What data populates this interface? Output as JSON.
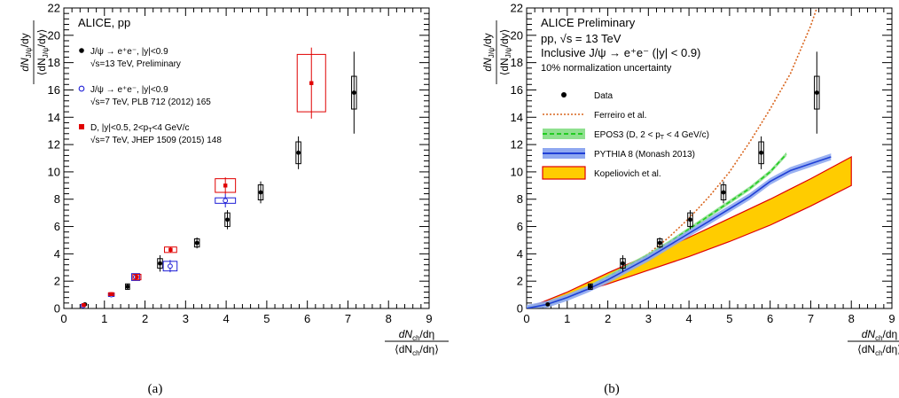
{
  "panels": [
    {
      "caption": "(a)",
      "header": "ALICE, pp",
      "header_lines": [],
      "legend": [
        {
          "marker": "dot-black",
          "line1": "J/ψ → e⁺e⁻, |y|<0.9",
          "line2": "√s=13 TeV, Preliminary"
        },
        {
          "marker": "circle-blue",
          "line1": "J/ψ → e⁺e⁻, |y|<0.9",
          "line2": "√s=7 TeV, PLB 712 (2012) 165"
        },
        {
          "marker": "square-red",
          "line1": "D, |y|<0.5, 2<p",
          "line1_sub": "T",
          "line1_tail": "<4 GeV/c",
          "line2": "√s=7 TeV, JHEP 1509 (2015) 148"
        }
      ]
    },
    {
      "caption": "(b)",
      "header": "ALICE Preliminary",
      "header_lines": [
        "pp, √s = 13 TeV",
        "Inclusive J/ψ → e⁺e⁻ (|y| < 0.9)",
        "10% normalization uncertainty"
      ],
      "legend": [
        {
          "marker": "dot-black",
          "line1": "Data"
        },
        {
          "marker": "dash-orange",
          "line1": "Ferreiro et al."
        },
        {
          "marker": "band-green",
          "line1": "EPOS3 (D, 2 < p",
          "line1_sub": "T",
          "line1_tail": " < 4 GeV/c)"
        },
        {
          "marker": "band-blue",
          "line1": "PYTHIA 8 (Monash 2013)"
        },
        {
          "marker": "band-orange",
          "line1": "Kopeliovich et al."
        }
      ]
    }
  ],
  "axis_text": {
    "y_num": "dN",
    "y_sub": "J/ψ",
    "y_tail": "/dy",
    "y_den_open": "⟨dN",
    "y_den_close": "/dy⟩",
    "x_num": "dN",
    "x_sub": "ch",
    "x_tail": "/dη",
    "x_den_open": "⟨dN",
    "x_den_close": "/dη⟩"
  },
  "chart_data": [
    {
      "type": "scatter",
      "title": "ALICE, pp",
      "xlim": [
        0,
        9
      ],
      "ylim": [
        0,
        22
      ],
      "xticks": [
        0,
        1,
        2,
        3,
        4,
        5,
        6,
        7,
        8,
        9
      ],
      "yticks": [
        0,
        2,
        4,
        6,
        8,
        10,
        12,
        14,
        16,
        18,
        20,
        22
      ],
      "grid": false,
      "series": [
        {
          "name": "J/ψ → e⁺e⁻, |y|<0.9, √s=13 TeV, Preliminary",
          "color": "#000000",
          "marker": "dot",
          "points": [
            {
              "x": 0.52,
              "y": 0.3,
              "err": 0.06,
              "sx": 0.04,
              "sy": 0.05
            },
            {
              "x": 1.57,
              "y": 1.6,
              "err": 0.2,
              "sx": 0.05,
              "sy": 0.2
            },
            {
              "x": 2.37,
              "y": 3.3,
              "err": 0.6,
              "sx": 0.06,
              "sy": 0.35
            },
            {
              "x": 3.28,
              "y": 4.8,
              "err": 0.4,
              "sx": 0.06,
              "sy": 0.3
            },
            {
              "x": 4.03,
              "y": 6.5,
              "err": 0.7,
              "sx": 0.06,
              "sy": 0.5
            },
            {
              "x": 4.85,
              "y": 8.5,
              "err": 0.8,
              "sx": 0.06,
              "sy": 0.55
            },
            {
              "x": 5.78,
              "y": 11.4,
              "err": 1.2,
              "sx": 0.06,
              "sy": 0.8
            },
            {
              "x": 7.15,
              "y": 15.8,
              "err": 3.0,
              "sx": 0.06,
              "sy": 1.2
            }
          ]
        },
        {
          "name": "J/ψ → e⁺e⁻, |y|<0.9, √s=7 TeV, PLB 712 (2012) 165",
          "color": "#1f1fd6",
          "marker": "open-circle",
          "points": [
            {
              "x": 0.47,
              "y": 0.2,
              "err": 0.05,
              "sx": 0.05,
              "sy": 0.05
            },
            {
              "x": 1.17,
              "y": 1.0,
              "err": 0.1,
              "sx": 0.07,
              "sy": 0.12
            },
            {
              "x": 1.77,
              "y": 2.3,
              "err": 0.2,
              "sx": 0.1,
              "sy": 0.25
            },
            {
              "x": 2.62,
              "y": 3.1,
              "err": 0.45,
              "sx": 0.17,
              "sy": 0.35
            },
            {
              "x": 3.98,
              "y": 7.9,
              "err": 0.5,
              "sx": 0.25,
              "sy": 0.2
            }
          ]
        },
        {
          "name": "D, |y|<0.5, 2<pT<4 GeV/c, √s=7 TeV, JHEP 1509 (2015) 148",
          "color": "#e00000",
          "marker": "square",
          "points": [
            {
              "x": 0.49,
              "y": 0.25,
              "err": 0.05,
              "sx": 0.04,
              "sy": 0.05
            },
            {
              "x": 1.17,
              "y": 1.05,
              "err": 0.08,
              "sx": 0.07,
              "sy": 0.1
            },
            {
              "x": 1.8,
              "y": 2.3,
              "err": 0.15,
              "sx": 0.1,
              "sy": 0.2
            },
            {
              "x": 2.63,
              "y": 4.3,
              "err": 0.2,
              "sx": 0.15,
              "sy": 0.2
            },
            {
              "x": 3.98,
              "y": 9.0,
              "err": 0.6,
              "sx": 0.25,
              "sy": 0.5
            },
            {
              "x": 6.1,
              "y": 16.5,
              "err": 2.6,
              "sx": 0.35,
              "sy": 2.1
            }
          ]
        }
      ]
    },
    {
      "type": "scatter",
      "title": "ALICE Preliminary",
      "xlim": [
        0,
        9
      ],
      "ylim": [
        0,
        22
      ],
      "xticks": [
        0,
        1,
        2,
        3,
        4,
        5,
        6,
        7,
        8,
        9
      ],
      "yticks": [
        0,
        2,
        4,
        6,
        8,
        10,
        12,
        14,
        16,
        18,
        20,
        22
      ],
      "grid": false,
      "series": [
        {
          "name": "Data",
          "color": "#000000",
          "marker": "dot",
          "points": [
            {
              "x": 0.52,
              "y": 0.3,
              "err": 0.06,
              "sx": 0.04,
              "sy": 0.05
            },
            {
              "x": 1.57,
              "y": 1.6,
              "err": 0.2,
              "sx": 0.05,
              "sy": 0.2
            },
            {
              "x": 2.37,
              "y": 3.3,
              "err": 0.6,
              "sx": 0.06,
              "sy": 0.35
            },
            {
              "x": 3.28,
              "y": 4.8,
              "err": 0.4,
              "sx": 0.06,
              "sy": 0.3
            },
            {
              "x": 4.03,
              "y": 6.5,
              "err": 0.7,
              "sx": 0.06,
              "sy": 0.5
            },
            {
              "x": 4.85,
              "y": 8.5,
              "err": 0.8,
              "sx": 0.06,
              "sy": 0.55
            },
            {
              "x": 5.78,
              "y": 11.4,
              "err": 1.2,
              "sx": 0.06,
              "sy": 0.8
            },
            {
              "x": 7.15,
              "y": 15.8,
              "err": 3.0,
              "sx": 0.06,
              "sy": 1.2
            }
          ]
        }
      ],
      "curves": [
        {
          "name": "Ferreiro et al.",
          "color": "#d9661f",
          "style": "dotted",
          "x": [
            0,
            0.5,
            1,
            1.5,
            2,
            2.5,
            3,
            3.5,
            4,
            4.5,
            5,
            5.5,
            6,
            6.5,
            7,
            7.15
          ],
          "y": [
            0,
            0.35,
            0.9,
            1.5,
            2.3,
            3.1,
            4.0,
            5.2,
            6.6,
            8.2,
            10.0,
            12.2,
            14.6,
            17.2,
            20.7,
            22
          ]
        },
        {
          "name": "EPOS3 (D, 2 < pT < 4 GeV/c)",
          "color": "#22cc22",
          "fill": "#8fe08f",
          "style": "dashed",
          "x": [
            0,
            0.5,
            1,
            1.5,
            2,
            2.5,
            3,
            3.5,
            4,
            4.5,
            5,
            5.5,
            6,
            6.4
          ],
          "y": [
            0,
            0.3,
            0.8,
            1.5,
            2.3,
            3.1,
            3.9,
            4.8,
            5.8,
            6.8,
            7.8,
            8.8,
            10.0,
            11.3
          ],
          "band": 0.15
        },
        {
          "name": "PYTHIA 8 (Monash 2013)",
          "color": "#1f3fd6",
          "fill": "#8fa8f0",
          "style": "solid",
          "x": [
            0,
            0.5,
            1,
            1.5,
            2,
            2.5,
            3,
            3.5,
            4,
            4.5,
            5,
            5.5,
            6,
            6.5,
            7,
            7.5
          ],
          "y": [
            0,
            0.3,
            0.8,
            1.4,
            2.1,
            2.9,
            3.7,
            4.6,
            5.5,
            6.4,
            7.3,
            8.2,
            9.3,
            10.1,
            10.6,
            11.1
          ],
          "band": 0.25
        },
        {
          "name": "Kopeliovich et al.",
          "color": "#e00000",
          "fill": "#ffcc00",
          "style": "band",
          "x": [
            0,
            1,
            2,
            3,
            4,
            5,
            6,
            7,
            8
          ],
          "y_low": [
            0,
            0.9,
            1.8,
            2.8,
            3.8,
            4.9,
            6.1,
            7.5,
            9.0
          ],
          "y_high": [
            0,
            1.2,
            2.6,
            3.9,
            5.2,
            6.6,
            8.0,
            9.5,
            11.1
          ]
        }
      ]
    }
  ]
}
